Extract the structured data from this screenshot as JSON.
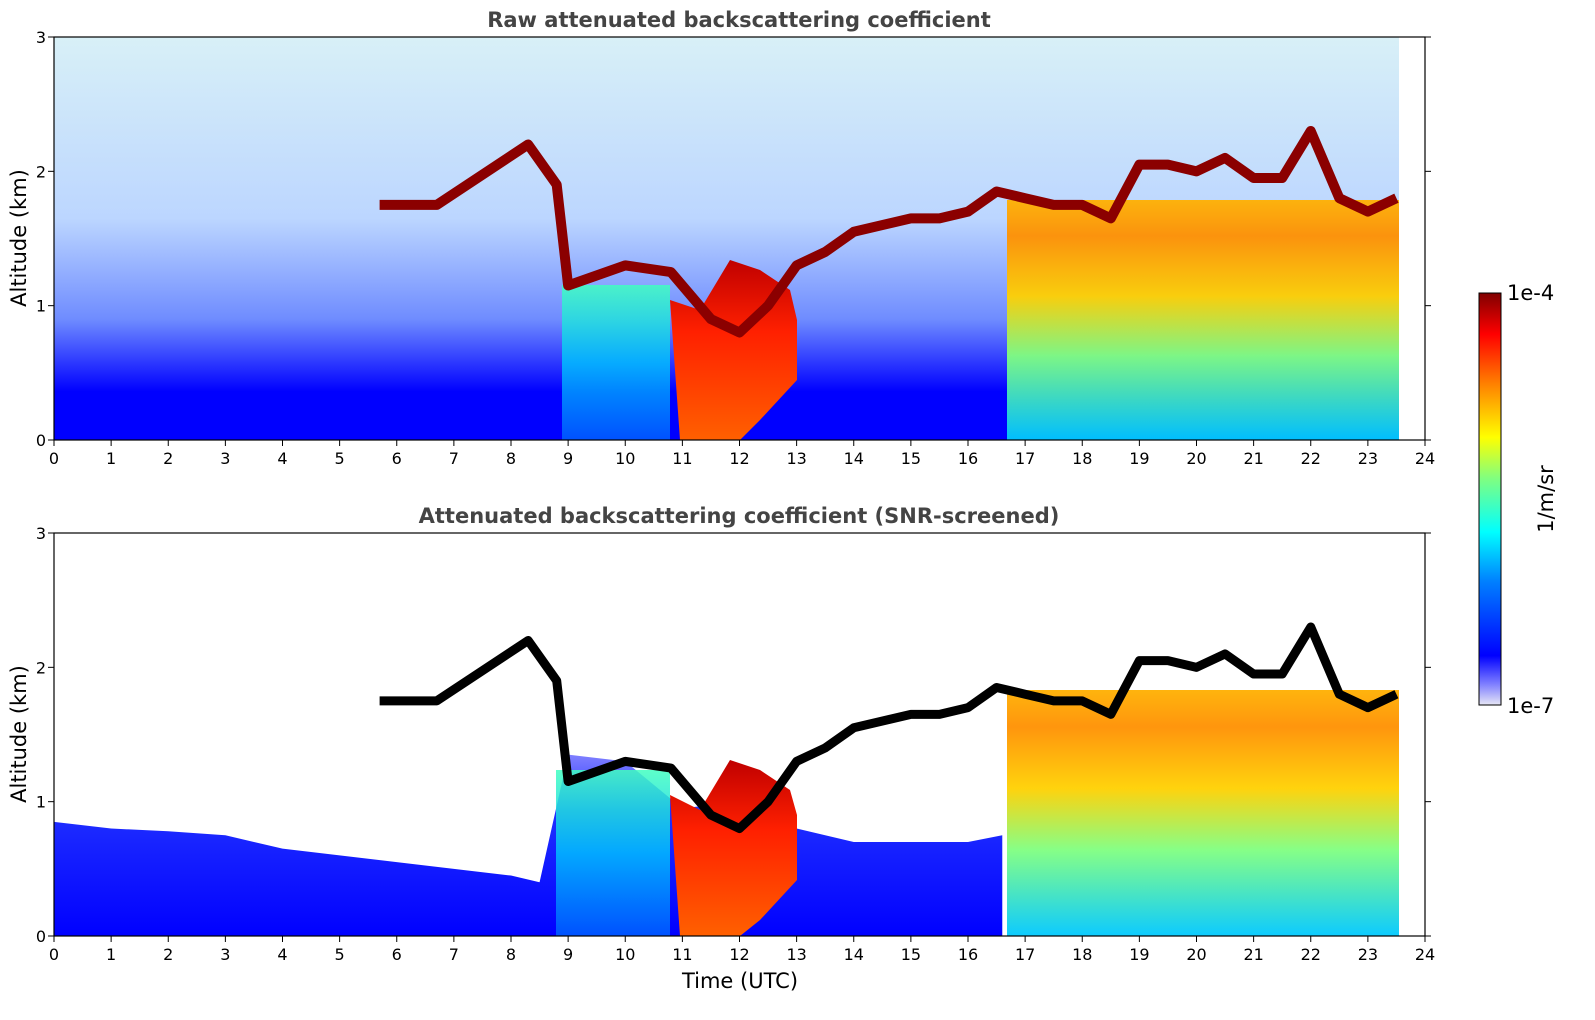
{
  "chart_data": [
    {
      "type": "heatmap",
      "title": "Raw attenuated backscattering coefficient",
      "xlabel": "",
      "ylabel": "Altitude (km)",
      "xlim": [
        0,
        24
      ],
      "ylim": [
        0,
        3
      ],
      "xticks": [
        "0",
        "1",
        "2",
        "3",
        "4",
        "5",
        "6",
        "7",
        "8",
        "9",
        "10",
        "11",
        "12",
        "13",
        "14",
        "15",
        "16",
        "17",
        "18",
        "19",
        "20",
        "21",
        "22",
        "23",
        "24"
      ],
      "yticks": [
        "0",
        "1",
        "2",
        "3"
      ],
      "data_end_time": 23.55,
      "cloud_base_km": {
        "time": [
          5.7,
          6.2,
          6.7,
          8.3,
          8.8,
          9.0,
          10.0,
          10.8,
          11.5,
          12.0,
          12.5,
          13.0,
          13.5,
          14.0,
          15.0,
          15.5,
          16.0,
          16.5,
          17.0,
          17.5,
          18.0,
          18.5,
          19.0,
          19.5,
          20.0,
          20.5,
          21.0,
          21.5,
          22.0,
          22.5,
          23.0,
          23.5
        ],
        "altitude": [
          1.75,
          1.75,
          1.75,
          2.2,
          1.9,
          1.15,
          1.3,
          1.25,
          0.9,
          0.8,
          1.0,
          1.3,
          1.4,
          1.55,
          1.65,
          1.65,
          1.7,
          1.85,
          1.8,
          1.75,
          1.75,
          1.65,
          2.05,
          2.05,
          2.0,
          2.1,
          1.95,
          1.95,
          2.3,
          1.8,
          1.7,
          1.8
        ]
      }
    },
    {
      "type": "heatmap",
      "title": "Attenuated backscattering coefficient (SNR-screened)",
      "xlabel": "Time (UTC)",
      "ylabel": "Altitude (km)",
      "xlim": [
        0,
        24
      ],
      "ylim": [
        0,
        3
      ],
      "xticks": [
        "0",
        "1",
        "2",
        "3",
        "4",
        "5",
        "6",
        "7",
        "8",
        "9",
        "10",
        "11",
        "12",
        "13",
        "14",
        "15",
        "16",
        "17",
        "18",
        "19",
        "20",
        "21",
        "22",
        "23",
        "24"
      ],
      "yticks": [
        "0",
        "1",
        "2",
        "3"
      ],
      "data_end_time": 23.55,
      "screened_top_km": {
        "time": [
          0,
          1,
          2,
          3,
          4,
          5,
          6,
          7,
          8,
          8.5,
          9,
          10,
          11,
          12,
          13,
          14,
          15,
          16,
          16.6
        ],
        "altitude": [
          0.85,
          0.8,
          0.78,
          0.75,
          0.65,
          0.6,
          0.55,
          0.5,
          0.45,
          0.4,
          1.35,
          1.3,
          0.95,
          1.0,
          0.8,
          0.7,
          0.7,
          0.7,
          0.75
        ]
      }
    }
  ],
  "colorbar": {
    "min_label": "1e-7",
    "max_label": "1e-4",
    "label": "1/m/sr",
    "scale": "log",
    "colormap": [
      "#00008f",
      "#0000ff",
      "#0080ff",
      "#00ffff",
      "#80ff80",
      "#ffff00",
      "#ff8000",
      "#ff0000",
      "#800000"
    ]
  }
}
